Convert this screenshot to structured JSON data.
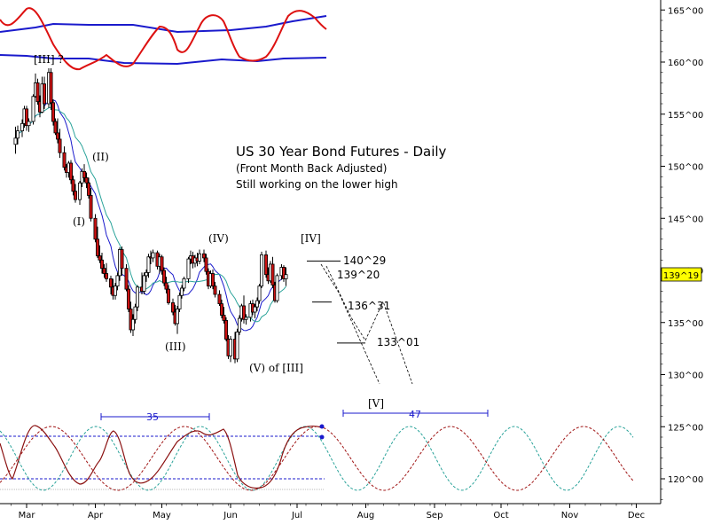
{
  "chart_data": {
    "type": "candlestick",
    "title": "US 30 Year Bond Futures - Daily",
    "subtitle": "(Front Month Back Adjusted)",
    "note": "Still working on the lower high",
    "y_axis": {
      "position": "right",
      "range": [
        117.5,
        167.5
      ],
      "ticks": [
        "165^00",
        "160^00",
        "155^00",
        "150^00",
        "145^00",
        "140^00",
        "135^00",
        "130^00",
        "125^00",
        "120^00"
      ],
      "tick_values": [
        165,
        160,
        155,
        150,
        145,
        140,
        135,
        130,
        125,
        120
      ]
    },
    "x_axis": {
      "months": [
        "Mar",
        "Apr",
        "May",
        "Jun",
        "Jul",
        "Aug",
        "Sep",
        "Oct",
        "Nov",
        "Dec"
      ],
      "range_days": [
        -7,
        275
      ]
    },
    "last_price": "139^19",
    "price_levels": [
      {
        "label": "140^29",
        "value": 140.9
      },
      {
        "label": "139^20",
        "value": 139.625
      },
      {
        "label": "136^31",
        "value": 136.97
      },
      {
        "label": "133^01",
        "value": 133.03
      }
    ],
    "wave_labels": [
      {
        "text": "[III] ?",
        "day": 18,
        "value": 160.2
      },
      {
        "text": "(I)",
        "day": 24,
        "value": 146.2
      },
      {
        "text": "(II)",
        "day": 36,
        "value": 151.0
      },
      {
        "text": "(III)",
        "day": 71,
        "value": 133.5
      },
      {
        "text": "(IV)",
        "day": 93,
        "value": 143.0
      },
      {
        "text": "(V) of [III]",
        "day": 113,
        "value": 130.5
      },
      {
        "text": "[IV]",
        "day": 133,
        "value": 143.0
      },
      {
        "text": "[V]",
        "day": 163,
        "value": 124.4
      }
    ],
    "cycle_labels": [
      "35",
      "47"
    ],
    "candles_ohlc": [
      [
        -5,
        152.1,
        153.8,
        151.2,
        152.7
      ],
      [
        -4,
        152.7,
        153.9,
        152.1,
        153.4
      ],
      [
        -2,
        153.4,
        154.5,
        152.8,
        154.1
      ],
      [
        -1,
        154.1,
        155.8,
        153.7,
        155.5
      ],
      [
        0,
        155.5,
        155.8,
        153.4,
        153.9
      ],
      [
        1,
        153.9,
        154.6,
        153.3,
        154.3
      ],
      [
        3,
        154.3,
        156.9,
        154.0,
        156.7
      ],
      [
        4,
        156.7,
        158.9,
        156.6,
        158.0
      ],
      [
        5,
        158.0,
        158.4,
        155.9,
        156.2
      ],
      [
        6,
        156.2,
        156.8,
        154.7,
        155.2
      ],
      [
        7,
        155.2,
        158.6,
        155.1,
        157.9
      ],
      [
        8,
        157.9,
        158.6,
        155.5,
        156.0
      ],
      [
        10,
        156.0,
        159.4,
        155.6,
        159.0
      ],
      [
        11,
        159.0,
        159.4,
        155.4,
        156.1
      ],
      [
        12,
        156.1,
        156.4,
        153.9,
        154.3
      ],
      [
        13,
        154.3,
        154.6,
        153.0,
        153.2
      ],
      [
        14,
        153.2,
        154.6,
        152.2,
        152.6
      ],
      [
        15,
        152.6,
        153.6,
        150.8,
        151.3
      ],
      [
        17,
        151.3,
        151.9,
        149.6,
        149.9
      ],
      [
        18,
        149.9,
        150.2,
        148.9,
        149.4
      ],
      [
        19,
        149.4,
        150.5,
        148.9,
        150.3
      ],
      [
        20,
        150.3,
        150.6,
        148.3,
        148.7
      ],
      [
        21,
        148.7,
        149.1,
        147.2,
        147.6
      ],
      [
        22,
        147.6,
        148.3,
        146.5,
        146.8
      ],
      [
        24,
        146.8,
        148.6,
        146.3,
        148.4
      ],
      [
        25,
        148.4,
        149.8,
        148.0,
        149.5
      ],
      [
        26,
        149.5,
        150.2,
        148.5,
        148.9
      ],
      [
        27,
        148.9,
        149.4,
        147.9,
        148.4
      ],
      [
        28,
        148.4,
        148.9,
        146.9,
        147.2
      ],
      [
        29,
        147.2,
        147.9,
        144.7,
        145.0
      ],
      [
        31,
        145.0,
        145.4,
        142.7,
        143.0
      ],
      [
        32,
        143.0,
        144.2,
        141.2,
        141.4
      ],
      [
        33,
        141.4,
        142.4,
        140.7,
        141.0
      ],
      [
        34,
        141.0,
        141.7,
        139.7,
        140.2
      ],
      [
        35,
        140.2,
        140.6,
        139.3,
        139.7
      ],
      [
        36,
        139.7,
        140.7,
        138.9,
        139.2
      ],
      [
        38,
        139.2,
        139.5,
        137.7,
        138.4
      ],
      [
        39,
        138.4,
        139.2,
        137.2,
        137.6
      ],
      [
        40,
        137.6,
        138.8,
        137.2,
        138.5
      ],
      [
        41,
        138.5,
        139.8,
        138.1,
        139.5
      ],
      [
        42,
        139.5,
        142.2,
        139.0,
        142.0
      ],
      [
        43,
        142.0,
        142.3,
        139.5,
        140.2
      ],
      [
        45,
        140.2,
        140.6,
        138.0,
        138.2
      ],
      [
        46,
        138.2,
        138.6,
        136.0,
        136.3
      ],
      [
        47,
        136.3,
        137.0,
        134.0,
        134.3
      ],
      [
        48,
        134.3,
        135.8,
        133.7,
        135.3
      ],
      [
        49,
        135.3,
        136.8,
        134.9,
        136.5
      ],
      [
        50,
        136.5,
        138.6,
        136.1,
        138.4
      ],
      [
        52,
        138.4,
        139.8,
        137.7,
        138.0
      ],
      [
        53,
        138.0,
        139.8,
        137.7,
        139.5
      ],
      [
        54,
        139.5,
        140.1,
        138.9,
        139.8
      ],
      [
        55,
        139.8,
        141.6,
        139.3,
        141.3
      ],
      [
        56,
        141.3,
        141.9,
        140.6,
        141.2
      ],
      [
        57,
        141.2,
        142.0,
        140.8,
        141.7
      ],
      [
        59,
        141.7,
        141.9,
        140.1,
        140.4
      ],
      [
        60,
        140.4,
        141.6,
        139.7,
        141.3
      ],
      [
        61,
        141.3,
        141.5,
        139.6,
        140.0
      ],
      [
        62,
        140.0,
        140.3,
        138.5,
        138.8
      ],
      [
        63,
        138.8,
        139.4,
        137.8,
        138.2
      ],
      [
        64,
        138.2,
        138.6,
        136.7,
        136.9
      ],
      [
        66,
        136.9,
        137.3,
        135.7,
        136.0
      ],
      [
        67,
        136.0,
        136.7,
        134.7,
        134.9
      ],
      [
        68,
        134.9,
        136.6,
        133.9,
        136.3
      ],
      [
        69,
        136.3,
        137.9,
        136.0,
        137.6
      ],
      [
        70,
        137.6,
        138.6,
        137.3,
        138.3
      ],
      [
        71,
        138.3,
        139.4,
        138.0,
        139.2
      ],
      [
        73,
        139.2,
        141.3,
        138.8,
        141.1
      ],
      [
        74,
        141.1,
        141.9,
        140.6,
        141.4
      ],
      [
        75,
        141.4,
        141.8,
        140.2,
        140.7
      ],
      [
        76,
        140.7,
        141.5,
        140.3,
        141.2
      ],
      [
        77,
        141.2,
        141.7,
        140.4,
        140.9
      ],
      [
        78,
        140.9,
        142.0,
        140.6,
        141.6
      ],
      [
        80,
        141.6,
        142.0,
        140.8,
        141.2
      ],
      [
        81,
        141.2,
        141.6,
        139.6,
        139.9
      ],
      [
        82,
        139.9,
        140.2,
        138.2,
        138.5
      ],
      [
        83,
        138.5,
        140.0,
        138.3,
        139.7
      ],
      [
        84,
        139.7,
        140.1,
        138.2,
        138.5
      ],
      [
        85,
        138.5,
        138.9,
        137.4,
        137.7
      ],
      [
        87,
        137.7,
        138.1,
        136.6,
        136.8
      ],
      [
        88,
        136.8,
        137.2,
        135.4,
        135.7
      ],
      [
        89,
        135.7,
        136.5,
        134.9,
        135.2
      ],
      [
        90,
        135.2,
        135.5,
        133.2,
        133.4
      ],
      [
        91,
        133.4,
        133.8,
        131.5,
        131.8
      ],
      [
        92,
        131.8,
        133.7,
        131.2,
        133.4
      ],
      [
        94,
        133.4,
        134.1,
        131.1,
        131.5
      ],
      [
        95,
        131.5,
        134.4,
        131.2,
        134.1
      ],
      [
        96,
        134.1,
        135.7,
        133.8,
        135.4
      ],
      [
        97,
        135.4,
        136.8,
        135.1,
        136.6
      ],
      [
        98,
        136.6,
        137.6,
        134.9,
        135.3
      ],
      [
        99,
        135.3,
        135.8,
        134.8,
        135.5
      ],
      [
        101,
        135.5,
        137.1,
        135.1,
        136.8
      ],
      [
        102,
        136.8,
        137.2,
        135.7,
        136.0
      ],
      [
        103,
        136.0,
        136.8,
        135.4,
        136.5
      ],
      [
        104,
        136.5,
        137.4,
        136.1,
        137.1
      ],
      [
        105,
        137.1,
        138.7,
        136.8,
        138.5
      ],
      [
        106,
        138.5,
        141.8,
        138.3,
        141.5
      ],
      [
        108,
        141.5,
        141.9,
        139.3,
        139.6
      ],
      [
        109,
        139.6,
        140.3,
        138.7,
        139.0
      ],
      [
        110,
        139.0,
        140.9,
        138.8,
        140.6
      ],
      [
        111,
        140.6,
        141.3,
        138.3,
        138.6
      ],
      [
        112,
        138.6,
        138.9,
        136.9,
        137.1
      ],
      [
        113,
        137.1,
        139.7,
        136.9,
        139.5
      ],
      [
        115,
        139.5,
        140.6,
        139.1,
        140.3
      ],
      [
        116,
        140.3,
        140.5,
        138.9,
        139.2
      ],
      [
        117,
        139.2,
        140.3,
        138.5,
        139.6
      ]
    ]
  }
}
